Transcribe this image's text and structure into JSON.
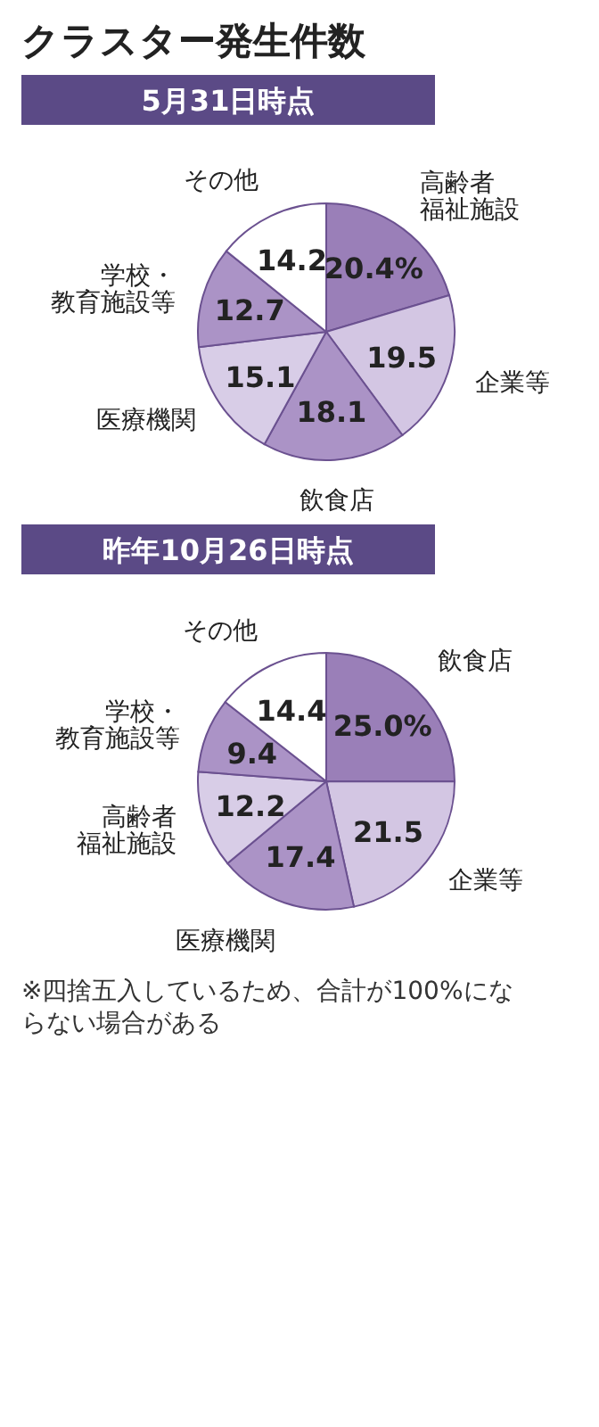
{
  "chart_data": [
    {
      "type": "pie",
      "title": "クラスター発生件数",
      "subtitle": "5月31日時点",
      "categories": [
        "高齢者福祉施設",
        "企業等",
        "飲食店",
        "医療機関",
        "学校・教育施設等",
        "その他"
      ],
      "values": [
        20.4,
        19.5,
        18.1,
        15.1,
        12.7,
        14.2
      ],
      "colors": [
        "#9a7fb8",
        "#d3c6e3",
        "#ab93c6",
        "#d8cde7",
        "#ab93c6",
        "#ffffff"
      ],
      "value_labels": [
        "20.4%",
        "19.5",
        "18.1",
        "15.1",
        "12.7",
        "14.2"
      ]
    },
    {
      "type": "pie",
      "title": "昨年10月26日時点",
      "categories": [
        "飲食店",
        "企業等",
        "医療機関",
        "高齢者福祉施設",
        "学校・教育施設等",
        "その他"
      ],
      "values": [
        25.0,
        21.5,
        17.4,
        12.2,
        9.4,
        14.4
      ],
      "colors": [
        "#9a7fb8",
        "#d3c6e3",
        "#ab93c6",
        "#d8cde7",
        "#ab93c6",
        "#ffffff"
      ],
      "value_labels": [
        "25.0%",
        "21.5",
        "17.4",
        "12.2",
        "9.4",
        "14.4"
      ],
      "annotations": [
        "※四捨五入しているため、合計が100%にならない場合がある"
      ]
    }
  ]
}
